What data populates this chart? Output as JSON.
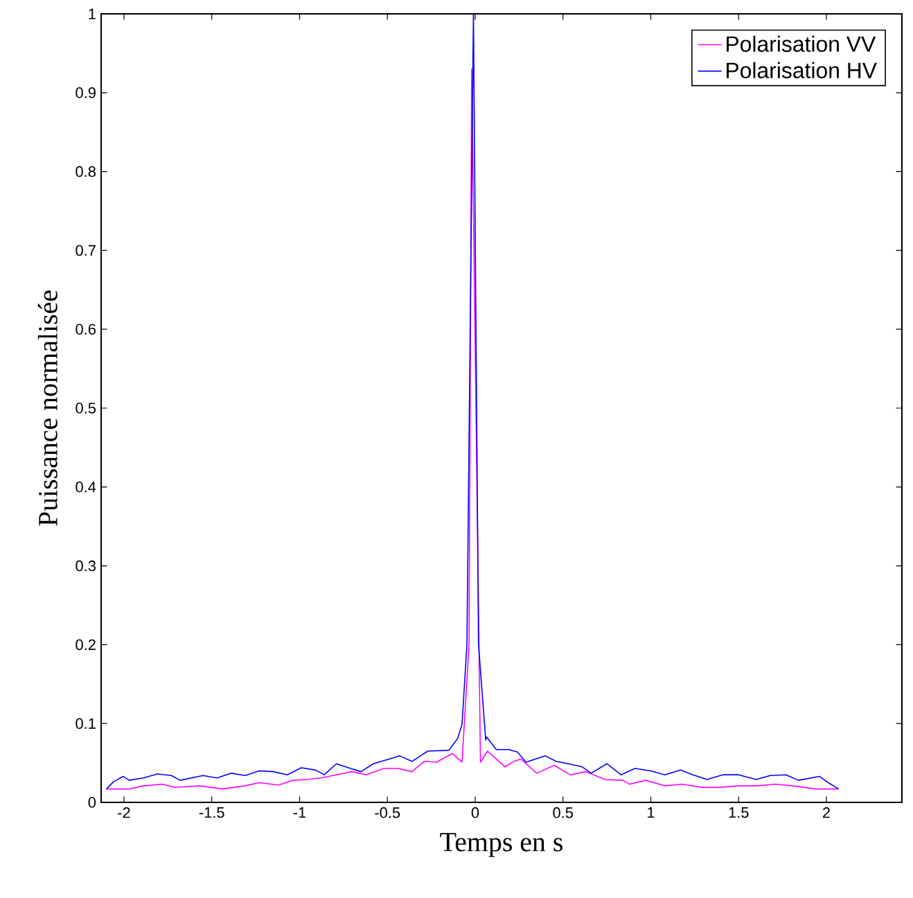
{
  "chart_data": {
    "type": "line",
    "xlabel": "Temps en s",
    "ylabel": "Puissance normalisée",
    "xlim": [
      -2.13,
      2.43
    ],
    "ylim": [
      0,
      1
    ],
    "xticks": [
      -2,
      -1.5,
      -1,
      -0.5,
      0,
      0.5,
      1,
      1.5,
      2
    ],
    "yticks": [
      0,
      0.1,
      0.2,
      0.3,
      0.4,
      0.5,
      0.6,
      0.7,
      0.8,
      0.9,
      1
    ],
    "grid": false,
    "legend": "top right",
    "marker": "none",
    "line_style": "solid",
    "series": [
      {
        "name": "Polarisation VV",
        "color": "#ff00ff",
        "x": [
          -2.1,
          -1.97,
          -1.89,
          -1.78,
          -1.71,
          -1.57,
          -1.44,
          -1.31,
          -1.23,
          -1.12,
          -1.04,
          -0.96,
          -0.88,
          -0.81,
          -0.7,
          -0.62,
          -0.52,
          -0.44,
          -0.36,
          -0.29,
          -0.22,
          -0.13,
          -0.075,
          -0.035,
          -0.02,
          0.03,
          0.07,
          0.12,
          0.17,
          0.22,
          0.26,
          0.35,
          0.45,
          0.54,
          0.63,
          0.74,
          0.84,
          0.88,
          0.97,
          1.08,
          1.18,
          1.29,
          1.39,
          1.5,
          1.6,
          1.71,
          1.81,
          1.94,
          2.07
        ],
        "values": [
          0.017,
          0.017,
          0.021,
          0.023,
          0.019,
          0.021,
          0.017,
          0.021,
          0.025,
          0.022,
          0.028,
          0.029,
          0.031,
          0.034,
          0.039,
          0.035,
          0.043,
          0.043,
          0.039,
          0.052,
          0.051,
          0.062,
          0.051,
          0.2,
          0.93,
          0.051,
          0.065,
          0.055,
          0.045,
          0.052,
          0.055,
          0.037,
          0.047,
          0.035,
          0.039,
          0.029,
          0.028,
          0.023,
          0.028,
          0.021,
          0.023,
          0.019,
          0.019,
          0.021,
          0.021,
          0.023,
          0.021,
          0.017,
          0.017
        ]
      },
      {
        "name": "Polarisation HV",
        "color": "#0000ff",
        "x": [
          -2.1,
          -2.06,
          -2.005,
          -1.97,
          -1.89,
          -1.81,
          -1.73,
          -1.68,
          -1.55,
          -1.47,
          -1.39,
          -1.31,
          -1.23,
          -1.15,
          -1.07,
          -0.99,
          -0.91,
          -0.86,
          -0.79,
          -0.71,
          -0.65,
          -0.58,
          -0.49,
          -0.43,
          -0.36,
          -0.27,
          -0.15,
          -0.1,
          -0.075,
          -0.047,
          -0.01,
          0.019,
          0.06,
          0.065,
          0.12,
          0.19,
          0.24,
          0.29,
          0.4,
          0.46,
          0.53,
          0.61,
          0.66,
          0.75,
          0.83,
          0.91,
          1.0,
          1.08,
          1.17,
          1.24,
          1.32,
          1.41,
          1.5,
          1.6,
          1.68,
          1.77,
          1.84,
          1.96,
          2.01,
          2.07
        ],
        "values": [
          0.017,
          0.026,
          0.033,
          0.028,
          0.031,
          0.036,
          0.034,
          0.028,
          0.034,
          0.031,
          0.037,
          0.034,
          0.04,
          0.039,
          0.035,
          0.044,
          0.041,
          0.035,
          0.049,
          0.043,
          0.039,
          0.049,
          0.055,
          0.059,
          0.052,
          0.065,
          0.066,
          0.081,
          0.099,
          0.2,
          1.0,
          0.2,
          0.079,
          0.083,
          0.067,
          0.067,
          0.064,
          0.051,
          0.059,
          0.052,
          0.049,
          0.045,
          0.037,
          0.049,
          0.035,
          0.043,
          0.04,
          0.035,
          0.041,
          0.035,
          0.029,
          0.035,
          0.035,
          0.029,
          0.034,
          0.035,
          0.028,
          0.033,
          0.025,
          0.017
        ]
      }
    ]
  }
}
